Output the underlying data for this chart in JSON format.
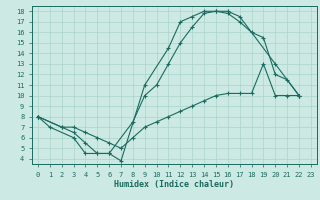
{
  "xlabel": "Humidex (Indice chaleur)",
  "xlim": [
    -0.5,
    23.5
  ],
  "ylim": [
    3.5,
    18.5
  ],
  "xticks": [
    0,
    1,
    2,
    3,
    4,
    5,
    6,
    7,
    8,
    9,
    10,
    11,
    12,
    13,
    14,
    15,
    16,
    17,
    18,
    19,
    20,
    21,
    22,
    23
  ],
  "yticks": [
    4,
    5,
    6,
    7,
    8,
    9,
    10,
    11,
    12,
    13,
    14,
    15,
    16,
    17,
    18
  ],
  "bg_color": "#cce9e3",
  "grid_color": "#aad4cc",
  "line_color": "#1a6b60",
  "curves": [
    {
      "x": [
        0,
        1,
        3,
        4,
        5,
        6,
        7,
        9,
        11,
        12,
        13,
        14,
        15,
        16,
        17,
        20,
        22
      ],
      "y": [
        8,
        7,
        6,
        4.5,
        4.5,
        4.5,
        3.8,
        11,
        14.5,
        17,
        17.5,
        18,
        18,
        18,
        17.5,
        13,
        10
      ]
    },
    {
      "x": [
        0,
        2,
        3,
        4,
        5,
        6,
        8,
        9,
        10,
        11,
        12,
        13,
        14,
        15,
        16,
        17,
        18,
        19,
        20,
        21,
        22
      ],
      "y": [
        8,
        7,
        6.5,
        5.5,
        4.5,
        4.5,
        7.5,
        10,
        11,
        13,
        15,
        16.5,
        17.8,
        18,
        17.8,
        17,
        16,
        15.5,
        12,
        11.5,
        10
      ]
    },
    {
      "x": [
        0,
        2,
        3,
        4,
        5,
        6,
        7,
        8,
        9,
        10,
        11,
        12,
        13,
        14,
        15,
        16,
        17,
        18,
        19,
        20,
        21,
        22
      ],
      "y": [
        8,
        7,
        7,
        6.5,
        6,
        5.5,
        5,
        6,
        7,
        7.5,
        8,
        8.5,
        9,
        9.5,
        10,
        10.2,
        10.2,
        10.2,
        13,
        10,
        10,
        10
      ]
    }
  ]
}
